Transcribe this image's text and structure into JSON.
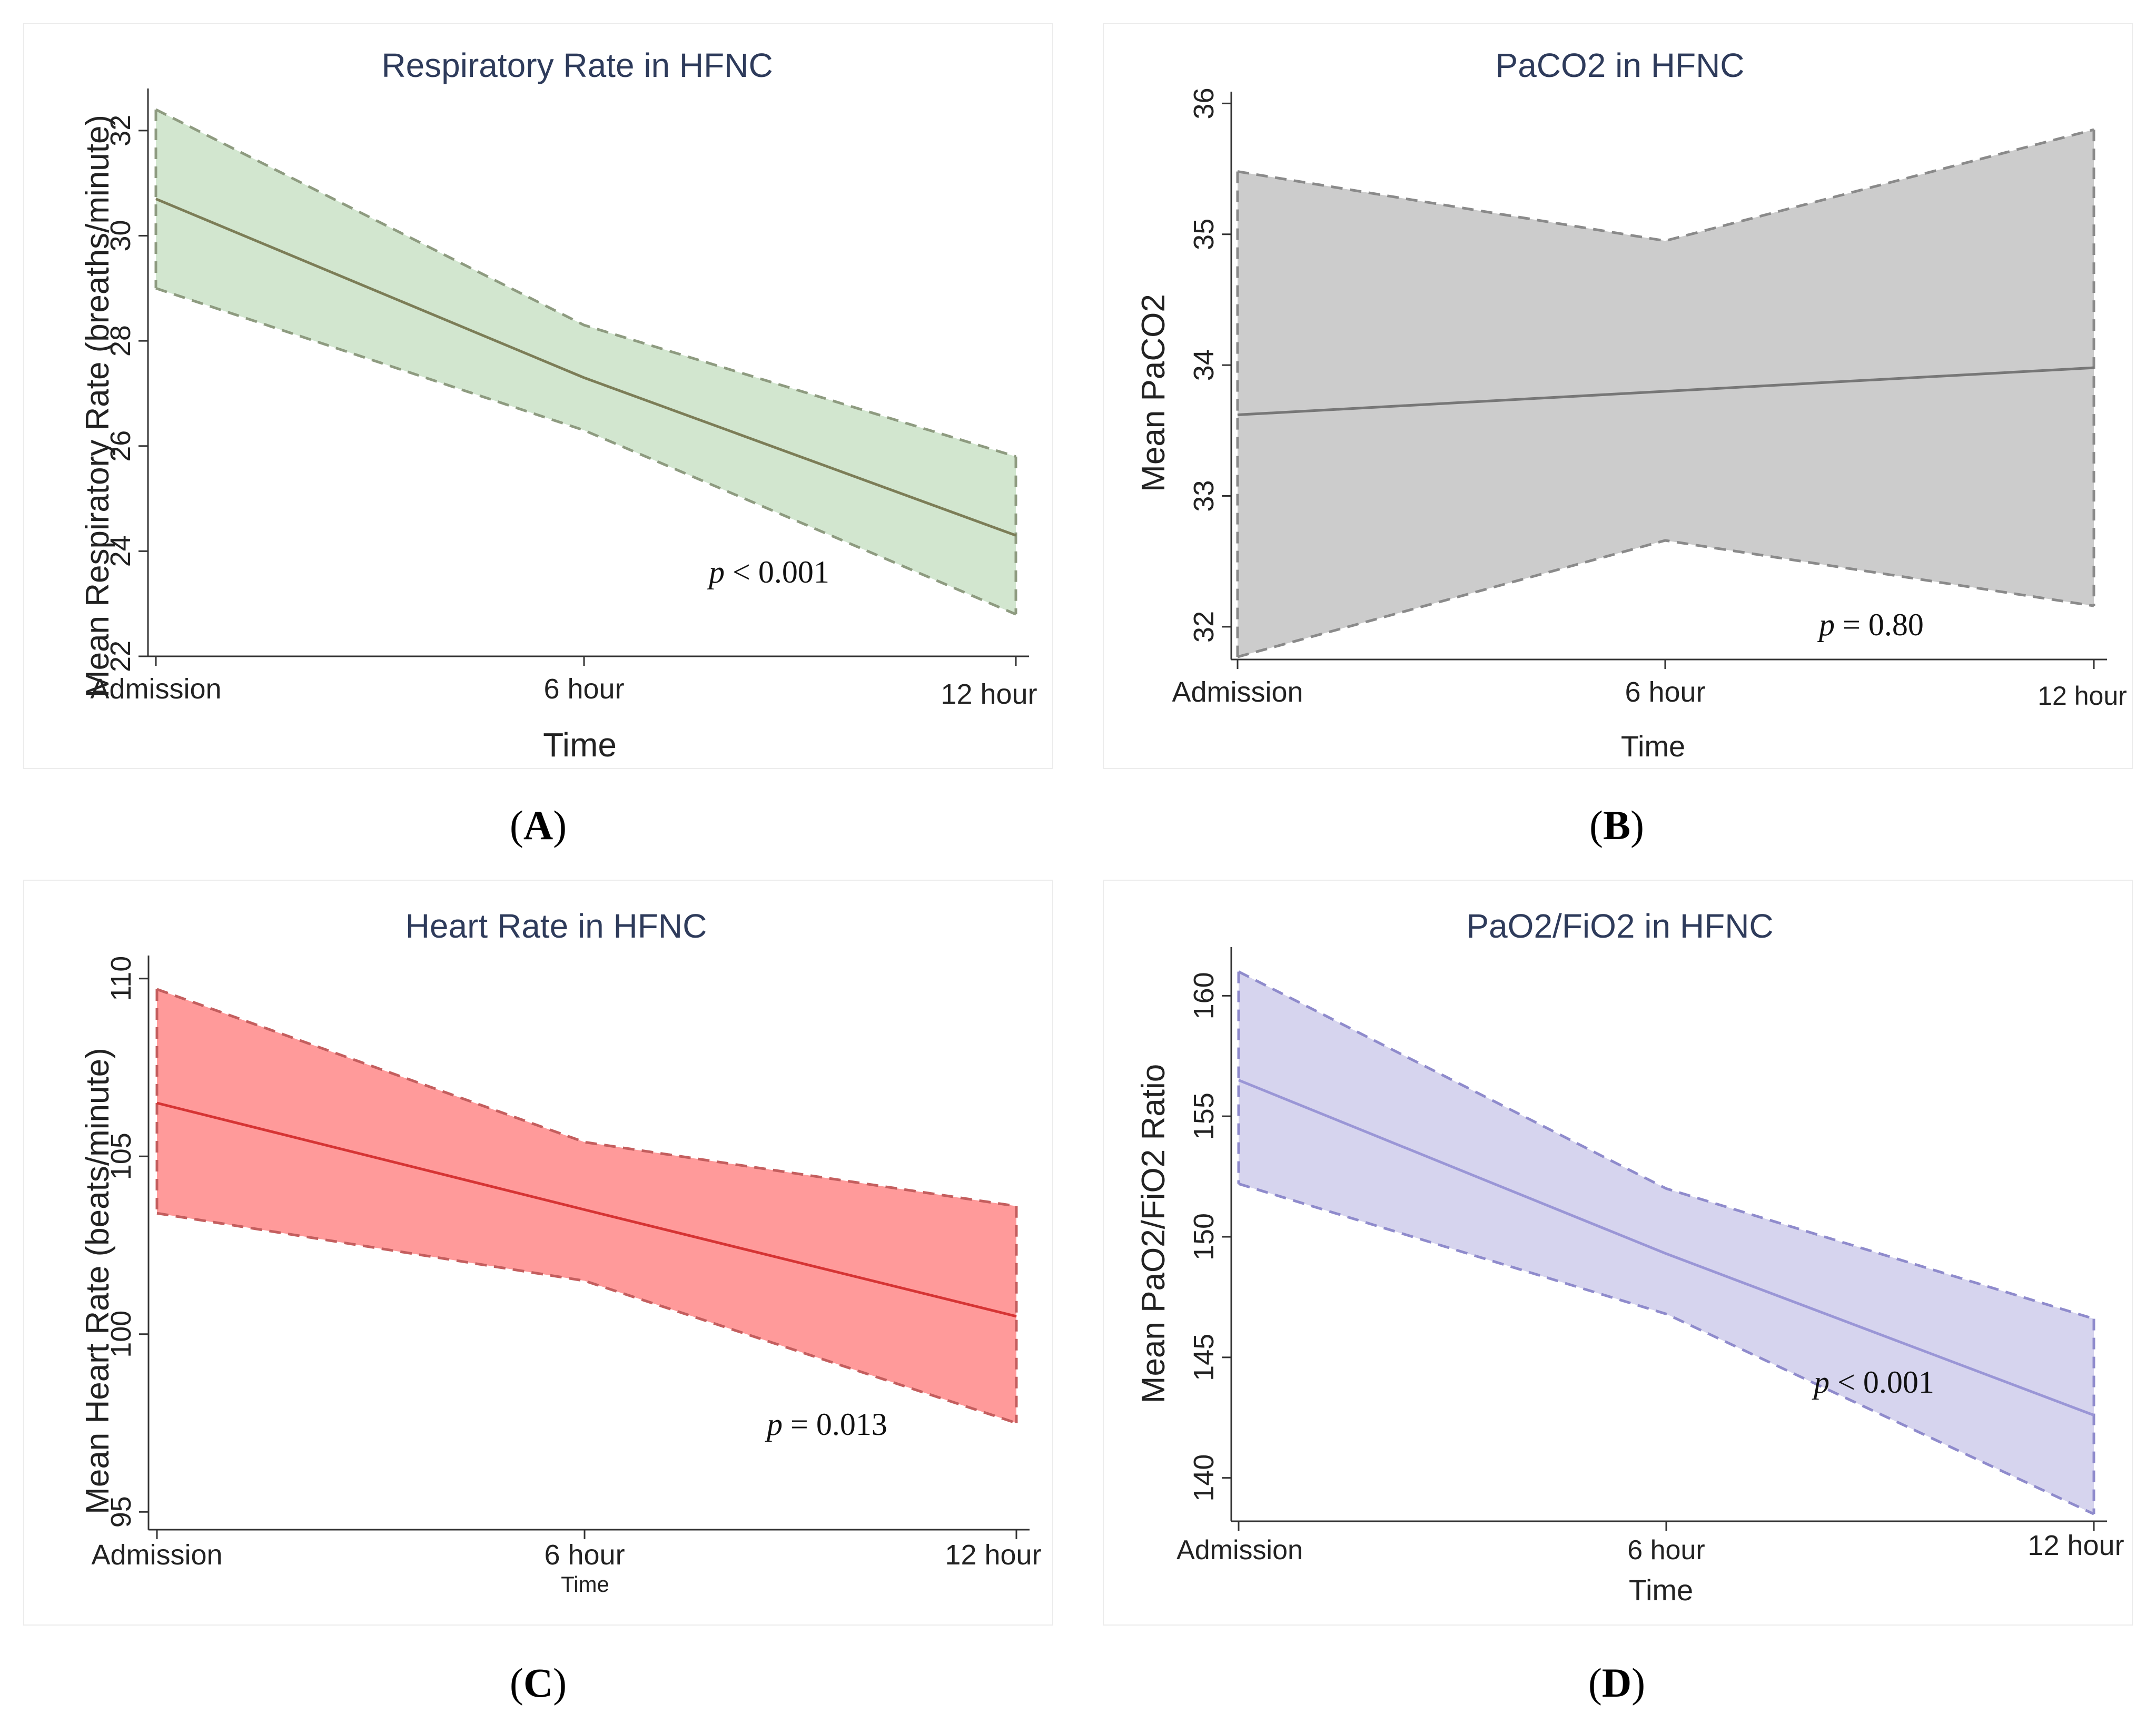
{
  "chart_data": [
    {
      "id": "A",
      "type": "line",
      "title": "Respiratory Rate in HFNC",
      "xlabel": "Time",
      "ylabel": "Mean Respiratory Rate (breaths/minute)",
      "categories": [
        "Admission",
        "6 hour",
        "12 hour"
      ],
      "mean": [
        30.7,
        27.3,
        24.3
      ],
      "ci_upper": [
        32.4,
        28.3,
        25.8
      ],
      "ci_lower": [
        29.0,
        26.3,
        22.8
      ],
      "ylim": [
        22,
        32.7
      ],
      "yticks": [
        22,
        24,
        26,
        28,
        30,
        32
      ],
      "p_italic": "p",
      "p_rest": " < 0.001",
      "p_pos": [
        8,
        23.2
      ],
      "colors": {
        "fill": "#d2e6cf",
        "line": "#7c7d57",
        "edge": "#8e9b80"
      }
    },
    {
      "id": "B",
      "type": "line",
      "title": "PaCO2 in HFNC",
      "xlabel": "Time",
      "ylabel": "Mean PaCO2",
      "categories": [
        "Admission",
        "6 hour",
        "12 hour"
      ],
      "mean": [
        33.62,
        33.8,
        33.98
      ],
      "ci_upper": [
        35.48,
        34.95,
        35.8
      ],
      "ci_lower": [
        31.77,
        32.66,
        32.16
      ],
      "ylim": [
        31.75,
        36.05
      ],
      "yticks": [
        32,
        33,
        34,
        35,
        36
      ],
      "p_italic": "p",
      "p_rest": " = 0.80",
      "p_pos": [
        8.2,
        32.15
      ],
      "colors": {
        "fill": "#cccccc",
        "line": "#777777",
        "edge": "#8a8a8a"
      }
    },
    {
      "id": "C",
      "type": "line",
      "title": "Heart Rate in HFNC",
      "xlabel": "Time",
      "ylabel": "Mean Heart Rate (beats/minute)",
      "categories": [
        "Admission",
        "6 hour",
        "12 hour"
      ],
      "mean": [
        106.5,
        103.5,
        100.5
      ],
      "ci_upper": [
        109.7,
        105.4,
        103.6
      ],
      "ci_lower": [
        103.4,
        101.5,
        97.5
      ],
      "ylim": [
        94.5,
        110.5
      ],
      "yticks": [
        95,
        100,
        105,
        110
      ],
      "p_italic": "p",
      "p_rest": " = 0.013",
      "p_pos": [
        8.5,
        97.2
      ],
      "colors": {
        "fill": "#ff9a9a",
        "line": "#d63434",
        "edge": "#c45e5e"
      }
    },
    {
      "id": "D",
      "type": "line",
      "title": "PaO2/FiO2 in HFNC",
      "xlabel": "Time",
      "ylabel": "Mean PaO2/FiO2 Ratio",
      "categories": [
        "Admission",
        "6 hour",
        "12 hour"
      ],
      "mean": [
        156.5,
        149.3,
        142.6
      ],
      "ci_upper": [
        161.0,
        152.0,
        146.6
      ],
      "ci_lower": [
        152.2,
        146.8,
        138.5
      ],
      "ylim": [
        138.2,
        161.8
      ],
      "yticks": [
        140,
        145,
        150,
        155,
        160
      ],
      "p_italic": "p",
      "p_rest": " < 0.001",
      "p_pos": [
        8.6,
        144.0
      ],
      "colors": {
        "fill": "#d6d4ee",
        "line": "#9a96d6",
        "edge": "#8f8bcc"
      }
    }
  ]
}
